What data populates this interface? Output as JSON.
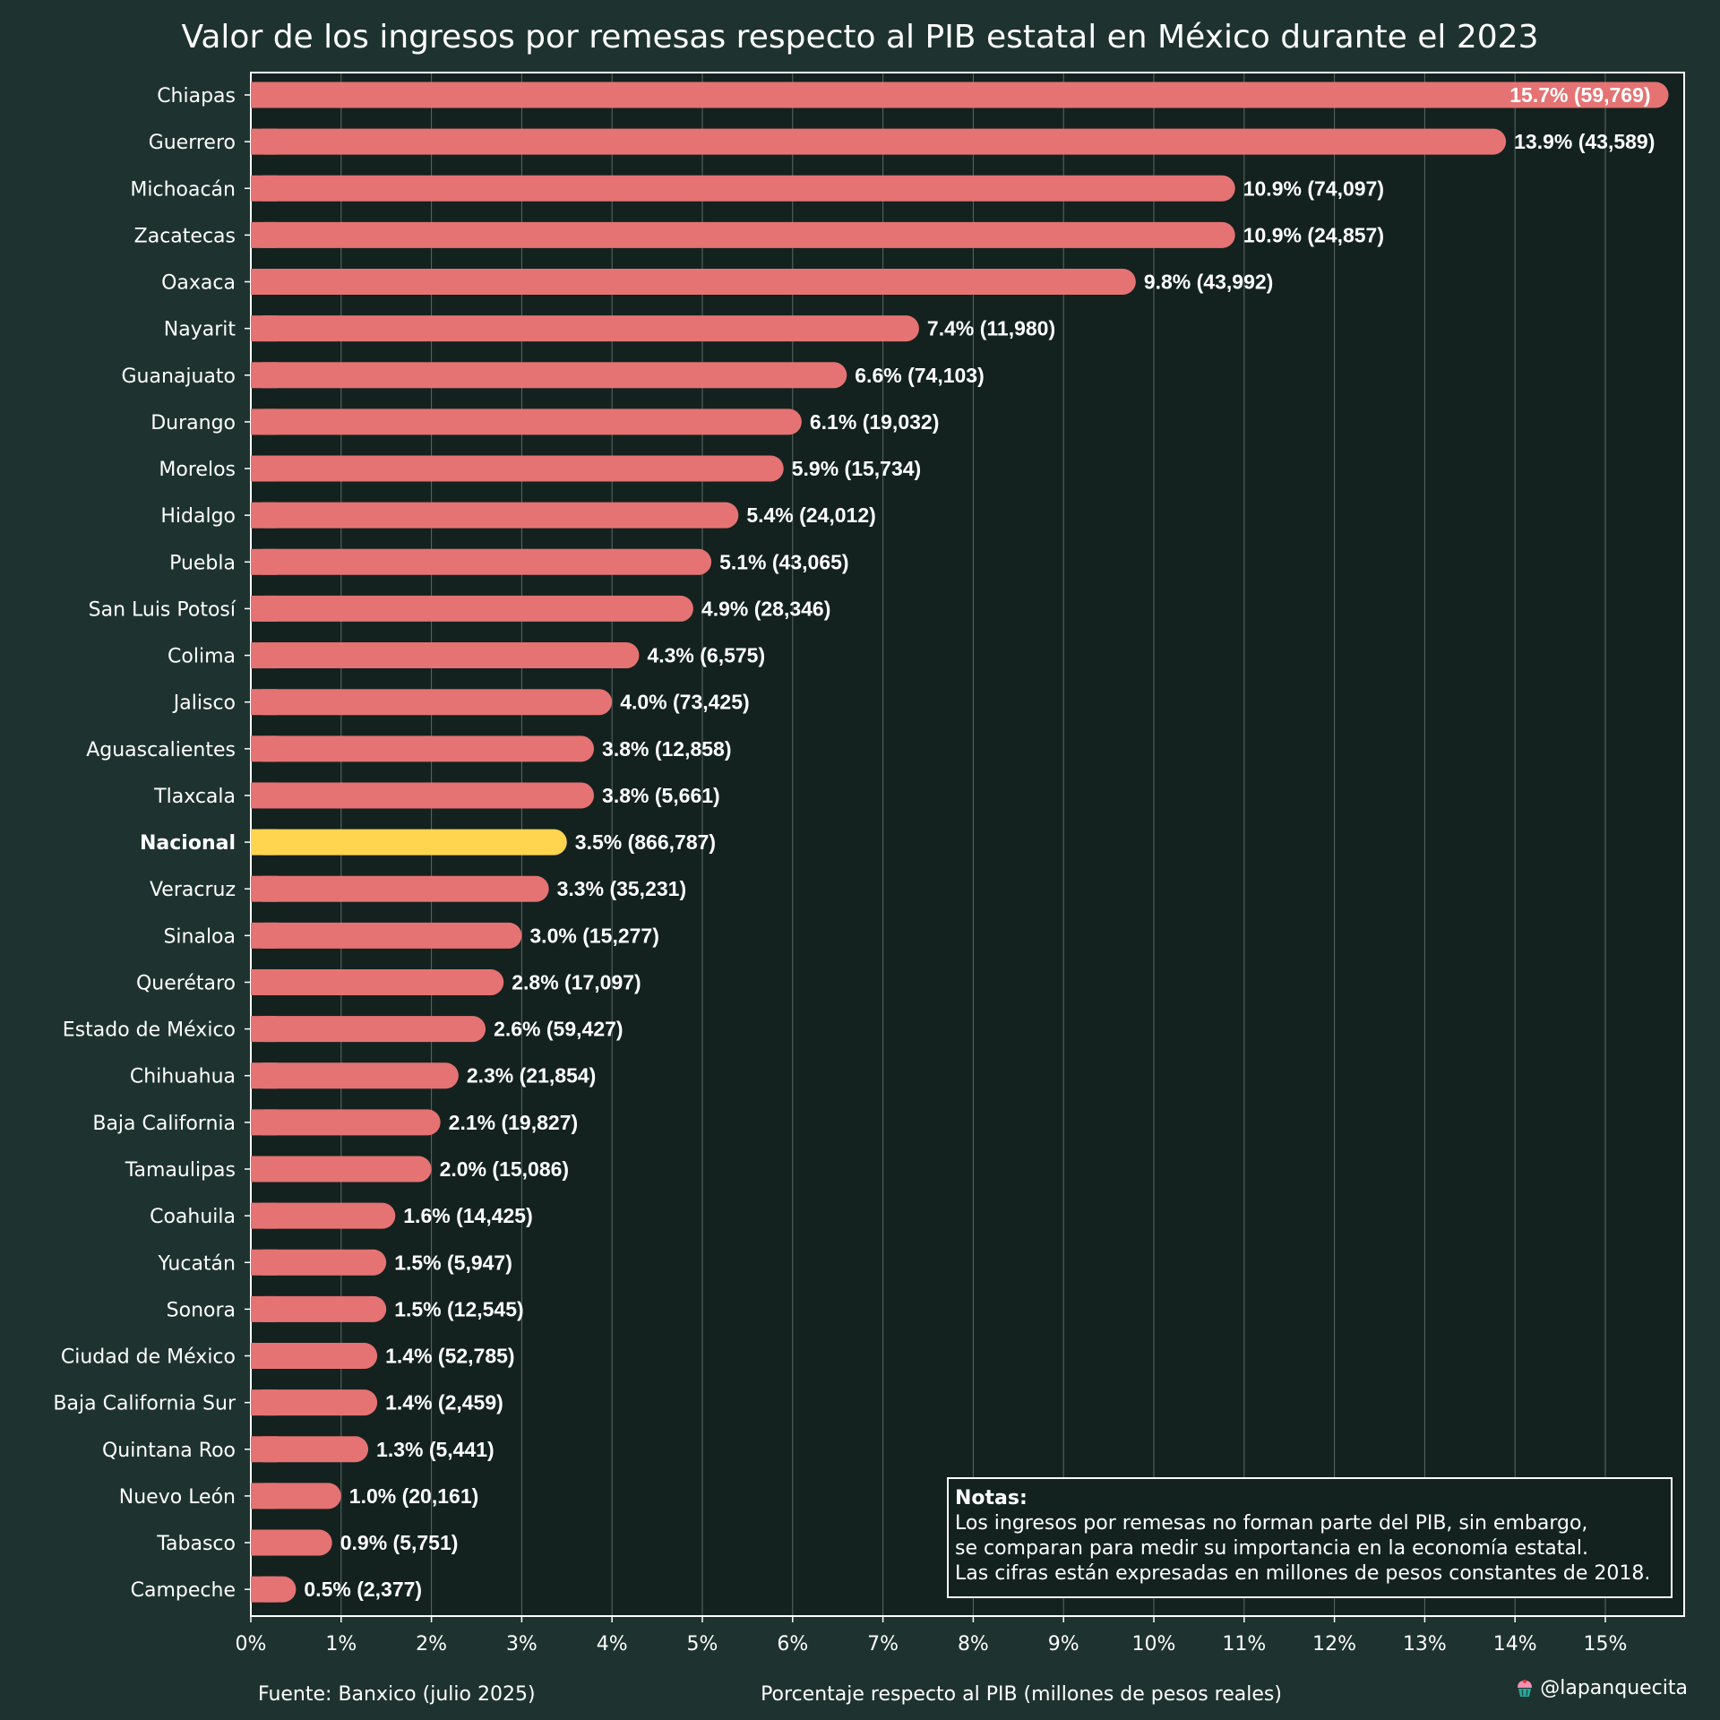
{
  "chart_data": {
    "type": "bar",
    "orientation": "horizontal",
    "title": "Valor de los ingresos por remesas respecto al PIB estatal en México durante el 2023",
    "xlabel": "Porcentaje respecto al PIB (millones de pesos reales)",
    "xlim": [
      0,
      16
    ],
    "xticks": [
      "0%",
      "1%",
      "2%",
      "3%",
      "4%",
      "5%",
      "6%",
      "7%",
      "8%",
      "9%",
      "10%",
      "11%",
      "12%",
      "13%",
      "14%",
      "15%"
    ],
    "grid": "vertical",
    "highlight_category": "Nacional",
    "colors": {
      "bar": "#e57373",
      "highlight": "#ffd54f",
      "panel": "#13221f",
      "background": "#1e332f"
    },
    "categories": [
      "Chiapas",
      "Guerrero",
      "Michoacán",
      "Zacatecas",
      "Oaxaca",
      "Nayarit",
      "Guanajuato",
      "Durango",
      "Morelos",
      "Hidalgo",
      "Puebla",
      "San Luis Potosí",
      "Colima",
      "Jalisco",
      "Aguascalientes",
      "Tlaxcala",
      "Nacional",
      "Veracruz",
      "Sinaloa",
      "Querétaro",
      "Estado de México",
      "Chihuahua",
      "Baja California",
      "Tamaulipas",
      "Coahuila",
      "Yucatán",
      "Sonora",
      "Ciudad de México",
      "Baja California Sur",
      "Quintana Roo",
      "Nuevo León",
      "Tabasco",
      "Campeche"
    ],
    "values": [
      15.7,
      13.9,
      10.9,
      10.9,
      9.8,
      7.4,
      6.6,
      6.1,
      5.9,
      5.4,
      5.1,
      4.9,
      4.3,
      4.0,
      3.8,
      3.8,
      3.5,
      3.3,
      3.0,
      2.8,
      2.6,
      2.3,
      2.1,
      2.0,
      1.6,
      1.5,
      1.5,
      1.4,
      1.4,
      1.3,
      1.0,
      0.9,
      0.5
    ],
    "data_labels": [
      "15.7% (59,769)",
      "13.9% (43,589)",
      "10.9% (74,097)",
      "10.9% (24,857)",
      "9.8% (43,992)",
      "7.4% (11,980)",
      "6.6% (74,103)",
      "6.1% (19,032)",
      "5.9% (15,734)",
      "5.4% (24,012)",
      "5.1% (43,065)",
      "4.9% (28,346)",
      "4.3% (6,575)",
      "4.0% (73,425)",
      "3.8% (12,858)",
      "3.8% (5,661)",
      "3.5% (866,787)",
      "3.3% (35,231)",
      "3.0% (15,277)",
      "2.8% (17,097)",
      "2.6% (59,427)",
      "2.3% (21,854)",
      "2.1% (19,827)",
      "2.0% (15,086)",
      "1.6% (14,425)",
      "1.5% (5,947)",
      "1.5% (12,545)",
      "1.4% (52,785)",
      "1.4% (2,459)",
      "1.3% (5,441)",
      "1.0% (20,161)",
      "0.9% (5,751)",
      "0.5% (2,377)"
    ]
  },
  "notes": {
    "title": "Notas:",
    "lines": [
      "Los ingresos por remesas no forman parte del PIB, sin embargo,",
      "se comparan para medir su importancia en la economía estatal.",
      "Las cifras están expresadas en millones de pesos constantes de 2018."
    ]
  },
  "footer": {
    "source": "Fuente: Banxico (julio 2025)",
    "credit": "@lapanquecita",
    "credit_icon": "cupcake-icon"
  }
}
